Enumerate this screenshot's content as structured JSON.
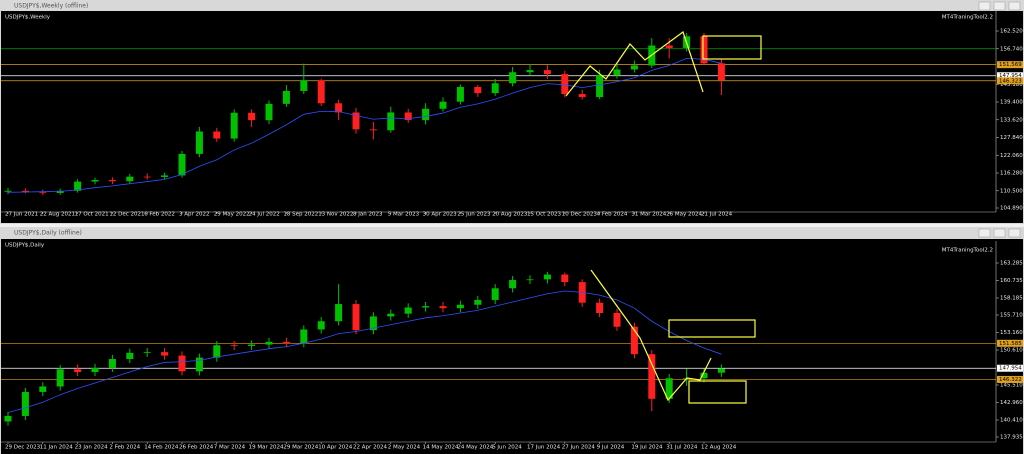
{
  "chart_data": [
    {
      "type": "candlestick",
      "window_title": "USDJPY$,Weekly (offline)",
      "title": "USDJPY$,Weekly",
      "indicator": "MT4TraningTool2.2",
      "up_color": "#00c000",
      "down_color": "#ff2020",
      "ma_color": "#3050ff",
      "open": [
        110.2,
        110.5,
        110.0,
        109.8,
        110.5,
        113.5,
        114.0,
        113.6,
        115.1,
        115.0,
        115.5,
        122.5,
        129.8,
        127.5,
        135.9,
        133.5,
        138.8,
        143.0,
        146.5,
        139.0,
        136.0,
        130.5,
        130.2,
        136.0,
        133.5,
        137.2,
        139.5,
        144.3,
        142.3,
        145.5,
        149.1,
        149.8,
        148.5,
        142.0,
        141.0,
        148.2,
        150.0,
        151.3,
        157.8,
        157.0,
        160.8,
        152.0
      ],
      "high": [
        111.4,
        111.3,
        110.9,
        111.2,
        114.3,
        114.8,
        114.9,
        116.0,
        116.2,
        116.4,
        123.5,
        131.3,
        131.0,
        137.0,
        137.0,
        139.9,
        144.9,
        151.9,
        147.0,
        140.2,
        137.5,
        132.9,
        137.9,
        137.2,
        139.0,
        140.9,
        145.1,
        145.0,
        146.9,
        150.8,
        151.7,
        151.4,
        149.6,
        143.4,
        149.9,
        151.9,
        152.9,
        160.2,
        160.2,
        161.9,
        161.9,
        153.4
      ],
      "low": [
        109.4,
        109.7,
        109.1,
        109.2,
        109.9,
        112.6,
        112.7,
        112.9,
        114.1,
        114.2,
        114.8,
        121.4,
        126.4,
        126.5,
        131.3,
        132.2,
        137.8,
        142.0,
        138.1,
        133.5,
        129.1,
        127.2,
        129.4,
        132.6,
        132.1,
        136.3,
        138.6,
        141.1,
        141.4,
        144.5,
        148.0,
        147.0,
        140.9,
        140.2,
        140.3,
        147.0,
        149.0,
        150.5,
        153.6,
        155.9,
        151.4,
        141.7
      ],
      "close": [
        110.5,
        110.0,
        109.8,
        110.5,
        113.5,
        114.0,
        113.6,
        115.1,
        115.0,
        115.5,
        122.5,
        129.8,
        127.5,
        135.9,
        133.5,
        138.8,
        143.0,
        146.5,
        139.0,
        136.0,
        130.5,
        130.2,
        136.0,
        133.5,
        137.2,
        139.5,
        144.3,
        142.3,
        145.5,
        149.1,
        149.8,
        148.5,
        142.0,
        141.0,
        148.2,
        150.0,
        151.3,
        157.8,
        157.0,
        160.8,
        152.0,
        146.5
      ],
      "ma": [
        110.0,
        110.1,
        110.2,
        110.3,
        110.8,
        111.5,
        112.1,
        112.8,
        113.5,
        114.2,
        115.8,
        118.5,
        120.6,
        123.8,
        126.0,
        128.9,
        132.0,
        135.4,
        136.4,
        136.3,
        135.0,
        133.8,
        134.2,
        134.0,
        134.7,
        135.8,
        137.7,
        138.8,
        140.3,
        142.3,
        144.1,
        145.4,
        145.0,
        144.1,
        145.0,
        146.0,
        147.3,
        149.7,
        151.3,
        153.6,
        153.3,
        152.0
      ],
      "xticks": [
        {
          "value": 0,
          "label": "27 Jun 2021"
        },
        {
          "value": 2,
          "label": "22 Aug 2021"
        },
        {
          "value": 4,
          "label": "17 Oct 2021"
        },
        {
          "value": 6,
          "label": "12 Dec 2021"
        },
        {
          "value": 8,
          "label": "6 Feb 2022"
        },
        {
          "value": 10,
          "label": "3 Apr 2022"
        },
        {
          "value": 12,
          "label": "29 May 2022"
        },
        {
          "value": 14,
          "label": "24 Jul 2022"
        },
        {
          "value": 16,
          "label": "18 Sep 2022"
        },
        {
          "value": 18,
          "label": "13 Nov 2022"
        },
        {
          "value": 20,
          "label": "8 Jan 2023"
        },
        {
          "value": 22,
          "label": "5 Mar 2023"
        },
        {
          "value": 24,
          "label": "30 Apr 2023"
        },
        {
          "value": 26,
          "label": "25 Jun 2023"
        },
        {
          "value": 28,
          "label": "20 Aug 2023"
        },
        {
          "value": 30,
          "label": "15 Oct 2023"
        },
        {
          "value": 32,
          "label": "10 Dec 2023"
        },
        {
          "value": 34,
          "label": "4 Feb 2024"
        },
        {
          "value": 36,
          "label": "31 Mar 2024"
        },
        {
          "value": 38,
          "label": "26 May 2024"
        },
        {
          "value": 40,
          "label": "21 Jul 2024"
        }
      ],
      "ylim": [
        104.24,
        168.06
      ],
      "yticks": [
        {
          "value": 162.52,
          "label": "162.520"
        },
        {
          "value": 156.74,
          "label": "156.740"
        },
        {
          "value": 145.18,
          "label": "145.180"
        },
        {
          "value": 139.4,
          "label": "139.400"
        },
        {
          "value": 133.62,
          "label": "133.620"
        },
        {
          "value": 127.84,
          "label": "127.840"
        },
        {
          "value": 122.06,
          "label": "122.060"
        },
        {
          "value": 116.28,
          "label": "116.280"
        },
        {
          "value": 110.5,
          "label": "110.500"
        },
        {
          "value": 104.89,
          "label": "104.890"
        }
      ],
      "levels": [
        {
          "value": 156.74,
          "color": "#00a000"
        },
        {
          "value": 151.569,
          "color": "#e0a020"
        },
        {
          "value": 147.954,
          "color": "#ffffff"
        },
        {
          "value": 146.323,
          "color": "#e0a020"
        }
      ]
    },
    {
      "type": "candlestick",
      "window_title": "USDJPY$,Daily (offline)",
      "title": "USDJPY$,Daily",
      "indicator": "MT4TraningTool2.2",
      "up_color": "#00c000",
      "down_color": "#ff2020",
      "ma_color": "#3050ff",
      "open": [
        140.2,
        141.0,
        144.5,
        145.3,
        147.8,
        147.4,
        148.0,
        149.3,
        150.2,
        150.3,
        149.8,
        147.5,
        149.5,
        151.3,
        151.2,
        151.4,
        151.8,
        151.6,
        153.6,
        154.8,
        157.3,
        153.5,
        155.5,
        155.9,
        156.8,
        157.0,
        156.7,
        157.2,
        157.9,
        159.6,
        160.8,
        160.9,
        161.6,
        160.5,
        157.5,
        156.0,
        154.0,
        150.0,
        143.5,
        146.5,
        146.5,
        147.3
      ],
      "high": [
        141.6,
        145.1,
        145.9,
        148.4,
        148.5,
        148.6,
        149.9,
        150.8,
        150.9,
        150.9,
        150.4,
        150.1,
        151.9,
        151.9,
        152.0,
        152.4,
        152.4,
        154.2,
        155.4,
        160.2,
        157.9,
        156.1,
        156.5,
        157.4,
        157.6,
        157.6,
        157.8,
        158.5,
        160.2,
        161.4,
        161.5,
        162.0,
        161.9,
        160.9,
        158.1,
        156.6,
        154.6,
        150.6,
        147.1,
        147.9,
        147.9,
        148.5
      ],
      "low": [
        139.6,
        140.4,
        143.9,
        144.7,
        146.8,
        146.8,
        147.4,
        148.7,
        149.6,
        149.2,
        146.9,
        146.9,
        148.9,
        150.6,
        150.6,
        150.8,
        151.0,
        151.0,
        153.0,
        154.2,
        152.9,
        152.9,
        154.9,
        155.3,
        156.2,
        156.1,
        156.1,
        156.6,
        157.3,
        159.0,
        160.2,
        160.3,
        159.9,
        156.9,
        155.4,
        153.4,
        149.4,
        141.7,
        142.9,
        145.4,
        145.9,
        146.7
      ],
      "close": [
        141.0,
        144.5,
        145.3,
        147.8,
        147.4,
        148.0,
        149.3,
        150.2,
        150.3,
        149.8,
        147.5,
        149.5,
        151.3,
        151.2,
        151.4,
        151.8,
        151.6,
        153.6,
        154.8,
        157.3,
        153.5,
        155.5,
        155.9,
        156.8,
        157.0,
        156.7,
        157.2,
        157.9,
        159.6,
        160.8,
        160.9,
        161.6,
        160.5,
        157.5,
        156.0,
        154.0,
        150.0,
        143.5,
        146.5,
        146.5,
        147.3,
        147.9
      ],
      "ma": [
        141.5,
        142.2,
        143.0,
        144.1,
        145.0,
        145.8,
        146.6,
        147.4,
        148.2,
        148.8,
        148.9,
        149.1,
        149.6,
        150.0,
        150.4,
        150.8,
        151.1,
        151.6,
        152.2,
        153.0,
        153.3,
        153.8,
        154.3,
        154.8,
        155.3,
        155.6,
        156.0,
        156.4,
        157.0,
        157.6,
        158.2,
        158.8,
        159.2,
        159.0,
        158.6,
        157.9,
        156.7,
        154.8,
        153.3,
        152.0,
        150.9,
        150.0
      ],
      "xticks": [
        {
          "value": 0,
          "label": "29 Dec 2023"
        },
        {
          "value": 2,
          "label": "11 Jan 2024"
        },
        {
          "value": 4,
          "label": "23 Jan 2024"
        },
        {
          "value": 6,
          "label": "2 Feb 2024"
        },
        {
          "value": 8,
          "label": "14 Feb 2024"
        },
        {
          "value": 10,
          "label": "26 Feb 2024"
        },
        {
          "value": 12,
          "label": "7 Mar 2024"
        },
        {
          "value": 14,
          "label": "19 Mar 2024"
        },
        {
          "value": 16,
          "label": "29 Mar 2024"
        },
        {
          "value": 18,
          "label": "10 Apr 2024"
        },
        {
          "value": 20,
          "label": "22 Apr 2024"
        },
        {
          "value": 22,
          "label": "2 May 2024"
        },
        {
          "value": 24,
          "label": "14 May 2024"
        },
        {
          "value": 26,
          "label": "24 May 2024"
        },
        {
          "value": 28,
          "label": "5 Jun 2024"
        },
        {
          "value": 30,
          "label": "17 Jun 2024"
        },
        {
          "value": 32,
          "label": "27 Jun 2024"
        },
        {
          "value": 34,
          "label": "9 Jul 2024"
        },
        {
          "value": 36,
          "label": "19 Jul 2024"
        },
        {
          "value": 38,
          "label": "31 Jul 2024"
        },
        {
          "value": 40,
          "label": "12 Aug 2024"
        }
      ],
      "ylim": [
        137.5,
        166.05
      ],
      "yticks": [
        {
          "value": 163.285,
          "label": "163.285"
        },
        {
          "value": 160.735,
          "label": "160.735"
        },
        {
          "value": 158.185,
          "label": "158.185"
        },
        {
          "value": 155.71,
          "label": "155.710"
        },
        {
          "value": 153.16,
          "label": "153.160"
        },
        {
          "value": 150.61,
          "label": "150.610"
        },
        {
          "value": 145.51,
          "label": "145.510"
        },
        {
          "value": 142.96,
          "label": "142.960"
        },
        {
          "value": 140.41,
          "label": "140.410"
        },
        {
          "value": 137.935,
          "label": "137.935"
        }
      ],
      "levels": [
        {
          "value": 151.585,
          "color": "#e0a020"
        },
        {
          "value": 147.954,
          "color": "#ffffff"
        },
        {
          "value": 146.322,
          "color": "#e0a020"
        }
      ]
    }
  ]
}
